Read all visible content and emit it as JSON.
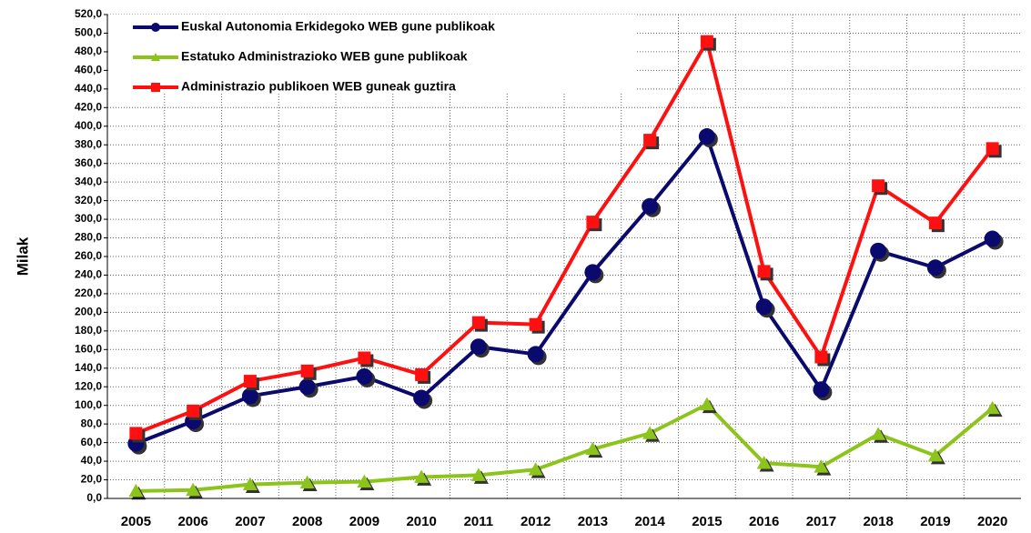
{
  "chart_data": {
    "type": "line",
    "y_label": "Milak",
    "categories": [
      "2005",
      "2006",
      "2007",
      "2008",
      "2009",
      "2010",
      "2011",
      "2012",
      "2013",
      "2014",
      "2015",
      "2016",
      "2017",
      "2018",
      "2019",
      "2020"
    ],
    "series": [
      {
        "name": "Euskal Autonomia Erkidegoko WEB gune publikoak",
        "color": "#0a0a6e",
        "marker": "circle",
        "values": [
          59,
          83,
          110,
          120,
          131,
          108,
          163,
          155,
          243,
          314,
          389,
          206,
          117,
          266,
          248,
          279
        ]
      },
      {
        "name": "Estatuko Administrazioko WEB gune publikoak",
        "color": "#8cc41c",
        "marker": "triangle",
        "values": [
          8,
          9,
          15,
          17,
          18,
          23,
          25,
          31,
          53,
          70,
          101,
          38,
          34,
          69,
          46,
          97
        ]
      },
      {
        "name": "Administrazio publikoen WEB guneak guztira",
        "color": "#ff1010",
        "marker": "square",
        "values": [
          70,
          94,
          126,
          137,
          151,
          133,
          189,
          187,
          297,
          385,
          491,
          244,
          152,
          336,
          296,
          376
        ]
      }
    ],
    "ylim": [
      0,
      520
    ],
    "yticks": [
      {
        "value": 0,
        "label": "0,0"
      },
      {
        "value": 20,
        "label": "20,0"
      },
      {
        "value": 40,
        "label": "40,0"
      },
      {
        "value": 60,
        "label": "60,0"
      },
      {
        "value": 80,
        "label": "80,0"
      },
      {
        "value": 100,
        "label": "100,0"
      },
      {
        "value": 120,
        "label": "120,0"
      },
      {
        "value": 140,
        "label": "140,0"
      },
      {
        "value": 160,
        "label": "160,0"
      },
      {
        "value": 180,
        "label": "180,0"
      },
      {
        "value": 200,
        "label": "200,0"
      },
      {
        "value": 220,
        "label": "220,0"
      },
      {
        "value": 240,
        "label": "240,0"
      },
      {
        "value": 260,
        "label": "260,0"
      },
      {
        "value": 280,
        "label": "280,0"
      },
      {
        "value": 300,
        "label": "300,0"
      },
      {
        "value": 320,
        "label": "320,0"
      },
      {
        "value": 340,
        "label": "340,0"
      },
      {
        "value": 360,
        "label": "360,0"
      },
      {
        "value": 380,
        "label": "380,0"
      },
      {
        "value": 400,
        "label": "400,0"
      },
      {
        "value": 420,
        "label": "420,0"
      },
      {
        "value": 440,
        "label": "440,0"
      },
      {
        "value": 460,
        "label": "460,0"
      },
      {
        "value": 480,
        "label": "480,0"
      },
      {
        "value": 500,
        "label": "500,0"
      },
      {
        "value": 520,
        "label": "520,0"
      }
    ],
    "grid": true,
    "legend": "top-left"
  }
}
